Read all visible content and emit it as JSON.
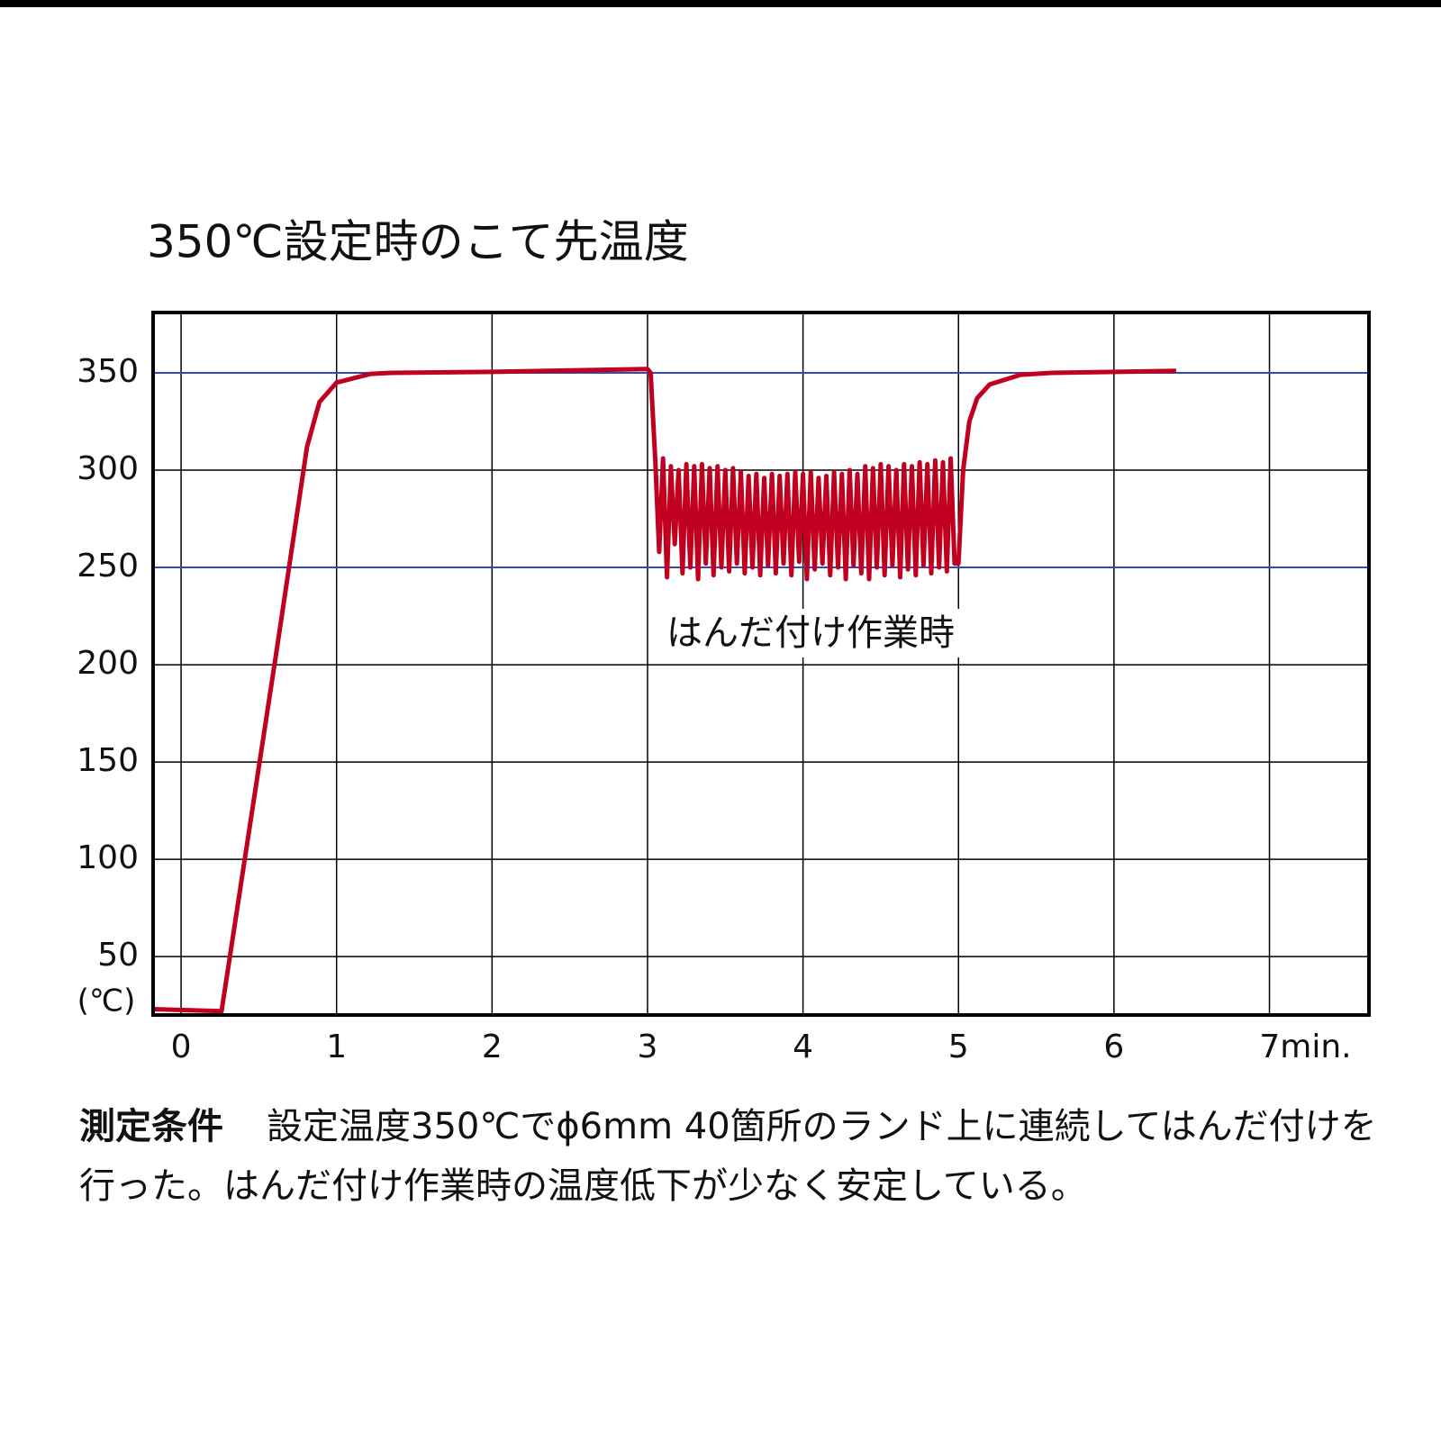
{
  "chart_data": {
    "type": "line",
    "title": "350℃設定時のこて先温度",
    "y_unit_label": "(℃)",
    "annotation": "はんだ付け作業時",
    "caption": {
      "label": "測定条件",
      "text": "設定温度350℃でϕ6mm 40箇所のランド上に連続してはんだ付けを行った。はんだ付け作業時の温度低下が少なく安定している。"
    },
    "color": "#c0001e",
    "grid": true,
    "grid_color": "#000000",
    "highlight_lines": {
      "values": [
        250,
        350
      ],
      "color": "#3347b5"
    },
    "xlim": [
      -0.18,
      7.64
    ],
    "ylim": [
      20,
      381
    ],
    "xticks": [
      0,
      1,
      2,
      3,
      4,
      5,
      6,
      {
        "value": 7,
        "label": "7min."
      }
    ],
    "yticks": [
      50,
      100,
      150,
      200,
      250,
      300,
      350
    ],
    "x": [
      -0.18,
      0.26,
      0.61,
      0.81,
      0.89,
      1.0,
      1.22,
      1.35,
      2.0,
      3.0,
      3.02,
      3.05,
      3.075,
      3.1,
      3.125,
      3.15,
      3.175,
      3.2,
      3.225,
      3.25,
      3.275,
      3.3,
      3.325,
      3.35,
      3.375,
      3.4,
      3.425,
      3.45,
      3.475,
      3.5,
      3.525,
      3.55,
      3.575,
      3.6,
      3.625,
      3.65,
      3.675,
      3.7,
      3.725,
      3.75,
      3.775,
      3.8,
      3.825,
      3.85,
      3.875,
      3.9,
      3.925,
      3.95,
      3.975,
      4.0,
      4.025,
      4.05,
      4.075,
      4.1,
      4.125,
      4.15,
      4.175,
      4.2,
      4.225,
      4.25,
      4.275,
      4.3,
      4.325,
      4.35,
      4.375,
      4.4,
      4.425,
      4.45,
      4.475,
      4.5,
      4.525,
      4.55,
      4.575,
      4.6,
      4.625,
      4.65,
      4.675,
      4.7,
      4.725,
      4.75,
      4.775,
      4.8,
      4.825,
      4.85,
      4.875,
      4.9,
      4.925,
      4.95,
      4.975,
      5.0,
      5.03,
      5.07,
      5.12,
      5.2,
      5.4,
      5.6,
      6.4
    ],
    "values": [
      23,
      22,
      205,
      312,
      335,
      345,
      349.5,
      350,
      350.5,
      352,
      350,
      305,
      258,
      306,
      245,
      302,
      262,
      300,
      247,
      303,
      250,
      302,
      244,
      303,
      252,
      301,
      246,
      302,
      250,
      300,
      248,
      301,
      252,
      299,
      247,
      297,
      250,
      298,
      246,
      296,
      251,
      298,
      247,
      297,
      252,
      298,
      246,
      299,
      253,
      298,
      244,
      299,
      249,
      296,
      252,
      297,
      246,
      299,
      250,
      298,
      244,
      300,
      251,
      298,
      247,
      302,
      244,
      301,
      250,
      303,
      246,
      302,
      251,
      300,
      245,
      303,
      249,
      302,
      246,
      304,
      251,
      303,
      247,
      305,
      250,
      304,
      248,
      306,
      252,
      252,
      300,
      325,
      337,
      344,
      349,
      350,
      351
    ]
  }
}
